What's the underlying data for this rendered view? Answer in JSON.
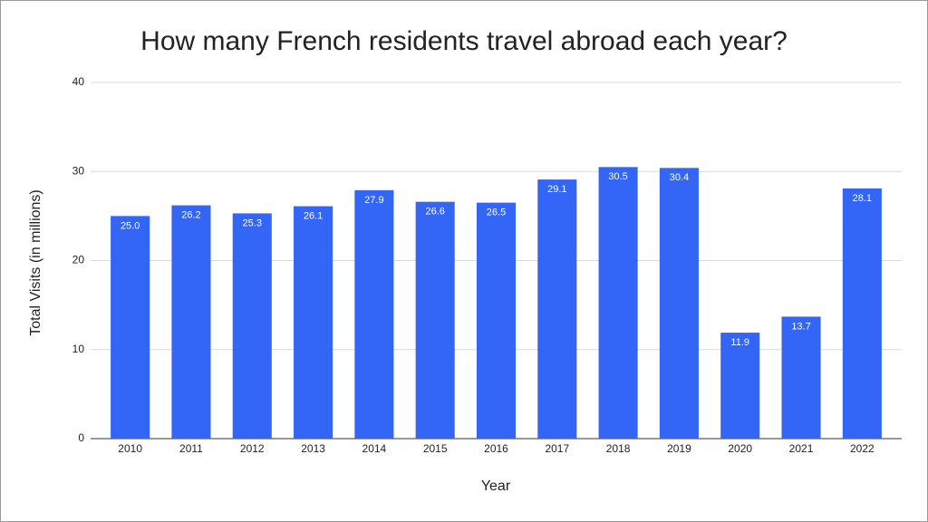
{
  "chart_data": {
    "type": "bar",
    "title": "How many French residents travel abroad each year?",
    "x_label": "Year",
    "y_label": "Total Visits (in millions)",
    "categories": [
      "2010",
      "2011",
      "2012",
      "2013",
      "2014",
      "2015",
      "2016",
      "2017",
      "2018",
      "2019",
      "2020",
      "2021",
      "2022"
    ],
    "values": [
      25.0,
      26.2,
      25.3,
      26.1,
      27.9,
      26.6,
      26.5,
      29.1,
      30.5,
      30.4,
      11.9,
      13.7,
      28.1
    ],
    "value_labels": [
      "25.0",
      "26.2",
      "25.3",
      "26.1",
      "27.9",
      "26.6",
      "26.5",
      "29.1",
      "30.5",
      "30.4",
      "11.9",
      "13.7",
      "28.1"
    ],
    "color": "#3366f6",
    "ylim": [
      0,
      40
    ],
    "yticks": [
      0,
      10,
      20,
      30,
      40
    ],
    "grid": true
  }
}
